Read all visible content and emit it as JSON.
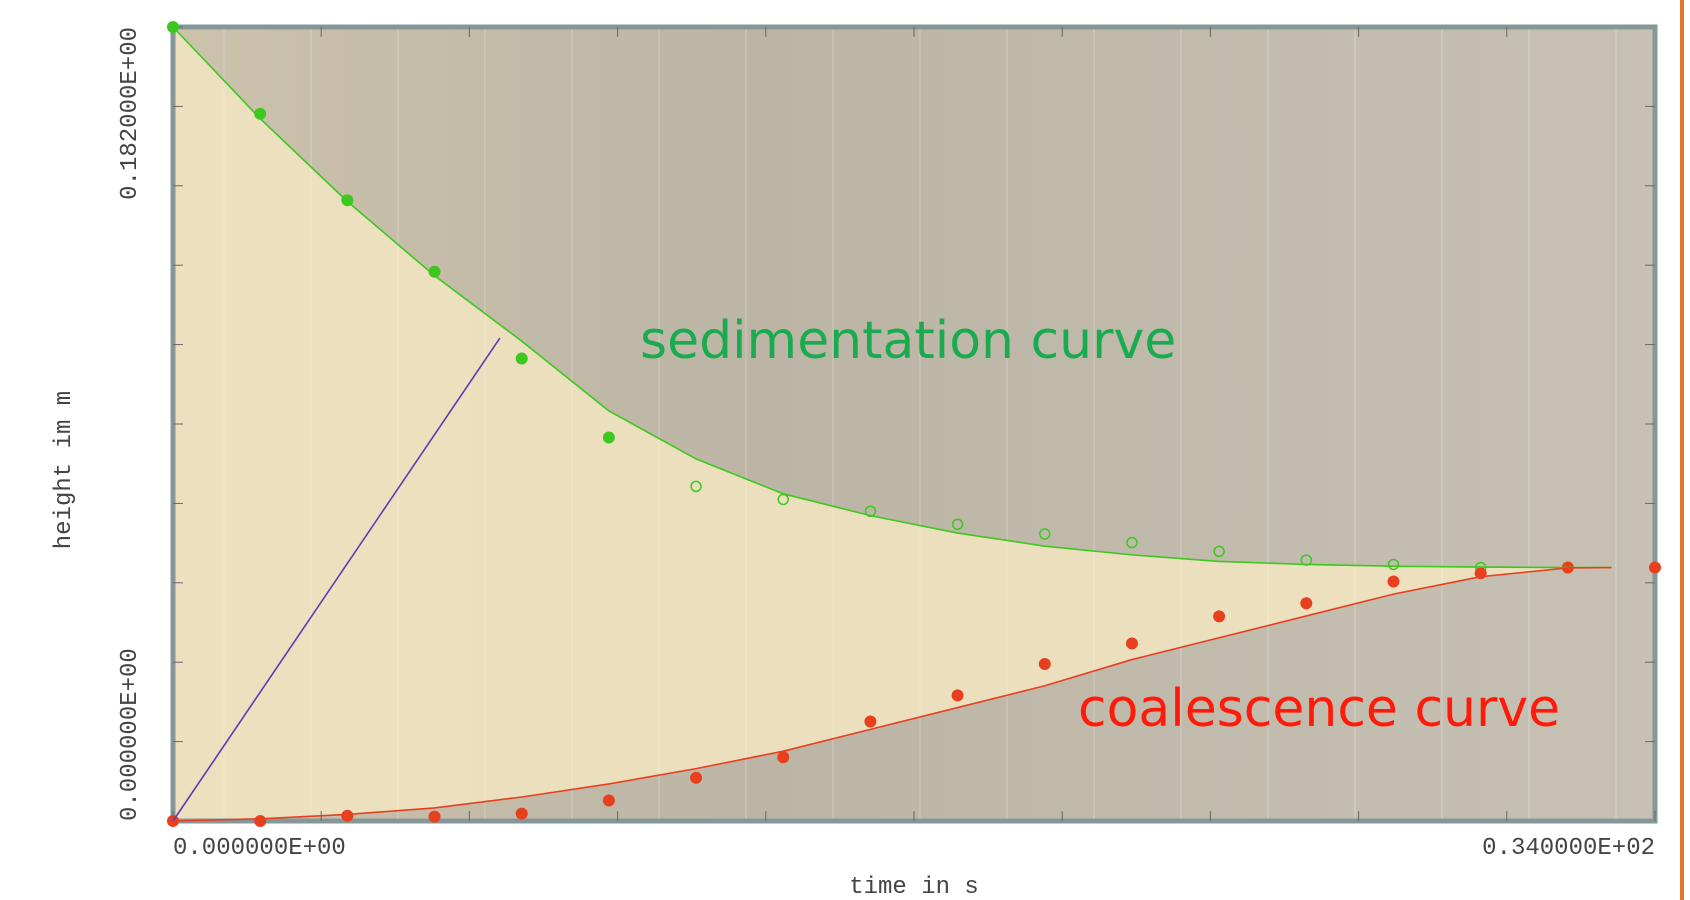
{
  "chart_data": {
    "type": "scatter",
    "xlabel": "time in s",
    "ylabel": "height im m",
    "xlim": [
      0,
      34
    ],
    "ylim": [
      0,
      0.182
    ],
    "xticks": [
      {
        "value": 0,
        "label": "0.000000E+00"
      },
      {
        "value": 34,
        "label": "0.340000E+02"
      }
    ],
    "yticks": [
      {
        "value": 0,
        "label": "0.000000E+00"
      },
      {
        "value": 0.182,
        "label": "0.182000E+00"
      }
    ],
    "x_minor_ticks": [
      3.4,
      6.8,
      10.2,
      13.6,
      17,
      20.4,
      23.8,
      27.2,
      30.6
    ],
    "y_minor_ticks": [
      0.0182,
      0.0364,
      0.0546,
      0.0728,
      0.091,
      0.1092,
      0.1274,
      0.1456,
      0.1638
    ],
    "series": [
      {
        "marker": "filled",
        "color": "#3cc81e",
        "x": [
          0,
          2,
          4,
          6,
          8,
          10
        ],
        "values": [
          0.182,
          0.1621,
          0.1423,
          0.1259,
          0.106,
          0.0879
        ]
      },
      {
        "marker": "open",
        "color": "#3cc81e",
        "x": [
          12,
          14,
          16,
          18,
          20,
          22,
          24,
          26,
          28,
          30,
          32,
          34
        ],
        "values": [
          0.0767,
          0.0737,
          0.071,
          0.068,
          0.0658,
          0.0638,
          0.0618,
          0.0598,
          0.0588,
          0.0581,
          0.0581,
          0.0581
        ]
      },
      {
        "marker": "filled",
        "color": "#e8401e",
        "x": [
          0,
          2,
          4,
          6,
          8,
          10,
          12,
          14,
          16,
          18,
          20,
          22,
          24,
          26,
          28,
          30,
          32,
          34
        ],
        "values": [
          0,
          0,
          0.0012,
          0.001,
          0.0017,
          0.0047,
          0.0099,
          0.0146,
          0.0228,
          0.0288,
          0.036,
          0.0407,
          0.0469,
          0.0499,
          0.0549,
          0.0568,
          0.0581,
          0.0581
        ]
      },
      {
        "marker": "line",
        "color": "#3cc81e",
        "x": [
          0,
          2,
          4,
          6,
          8,
          10,
          12,
          14,
          16,
          18,
          20,
          22,
          24,
          26,
          28,
          30,
          32,
          33
        ],
        "values": [
          0.182,
          0.161,
          0.142,
          0.125,
          0.11,
          0.094,
          0.083,
          0.075,
          0.07,
          0.066,
          0.063,
          0.061,
          0.0595,
          0.0588,
          0.0584,
          0.0582,
          0.0581,
          0.0581
        ]
      },
      {
        "marker": "line",
        "color": "#e8401e",
        "x": [
          0,
          2,
          4,
          6,
          8,
          10,
          12,
          14,
          16,
          18,
          20,
          22,
          24,
          26,
          28,
          30,
          32,
          33
        ],
        "values": [
          0,
          0.0005,
          0.0015,
          0.003,
          0.0055,
          0.0085,
          0.012,
          0.016,
          0.021,
          0.026,
          0.031,
          0.037,
          0.042,
          0.047,
          0.052,
          0.056,
          0.058,
          0.0581
        ]
      },
      {
        "marker": "line",
        "color": "#5a3cb4",
        "x": [
          0,
          7.5
        ],
        "values": [
          0,
          0.1107
        ]
      }
    ],
    "annotations": [
      {
        "text": "sedimentation curve",
        "color": "#1aab50"
      },
      {
        "text": "coalescence curve",
        "color": "#ff1a0a"
      }
    ]
  }
}
